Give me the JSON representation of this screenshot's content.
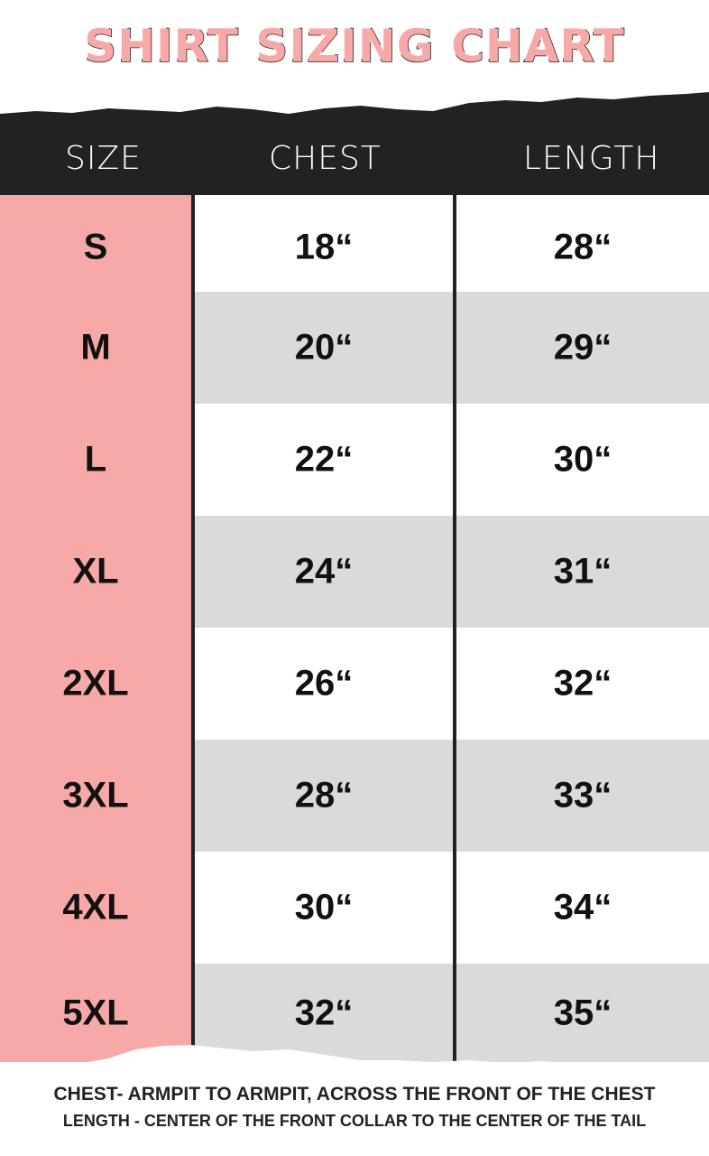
{
  "title": "SHIRT SIZING CHART",
  "colors": {
    "accent_pink": "#f7a9a8",
    "header_dark": "#222222",
    "row_gray": "#dadada"
  },
  "headers": {
    "size": "SIZE",
    "chest": "CHEST",
    "length": "LENGTH"
  },
  "rows": [
    {
      "size": "S",
      "chest": "18“",
      "length": "28“"
    },
    {
      "size": "M",
      "chest": "20“",
      "length": "29“"
    },
    {
      "size": "L",
      "chest": "22“",
      "length": "30“"
    },
    {
      "size": "XL",
      "chest": "24“",
      "length": "31“"
    },
    {
      "size": "2XL",
      "chest": "26“",
      "length": "32“"
    },
    {
      "size": "3XL",
      "chest": "28“",
      "length": "33“"
    },
    {
      "size": "4XL",
      "chest": "30“",
      "length": "34“"
    },
    {
      "size": "5XL",
      "chest": "32“",
      "length": "35“"
    }
  ],
  "notes": {
    "chest": "CHEST- ARMPIT TO ARMPIT, ACROSS THE FRONT OF THE CHEST",
    "length": "LENGTH - CENTER OF THE FRONT COLLAR TO THE CENTER OF THE TAIL"
  }
}
